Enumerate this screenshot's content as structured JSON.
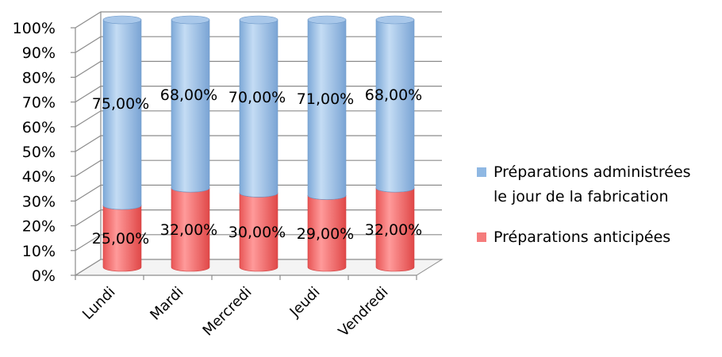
{
  "chart_data": {
    "type": "bar",
    "stacked": true,
    "percent_stacked": true,
    "three_d": true,
    "title": "",
    "xlabel": "",
    "ylabel": "",
    "categories": [
      "Lundi",
      "Mardi",
      "Mercredi",
      "Jeudi",
      "Vendredi"
    ],
    "series": [
      {
        "name": "Préparations anticipées",
        "color": "#f57c7c",
        "values": [
          25,
          32,
          30,
          29,
          32
        ],
        "labels": [
          "25,00%",
          "32,00%",
          "30,00%",
          "29,00%",
          "32,00%"
        ]
      },
      {
        "name": "Préparations administrées le jour de la fabrication",
        "legend_lines": [
          "Préparations administrées",
          "le jour de la fabrication"
        ],
        "color": "#8fb8e3",
        "values": [
          75,
          68,
          70,
          71,
          68
        ],
        "labels": [
          "75,00%",
          "68,00%",
          "70,00%",
          "71,00%",
          "68,00%"
        ]
      }
    ],
    "ylim": [
      0,
      100
    ],
    "yticks": [
      "0%",
      "10%",
      "20%",
      "30%",
      "40%",
      "50%",
      "60%",
      "70%",
      "80%",
      "90%",
      "100%"
    ],
    "grid": true,
    "legend_position": "right"
  }
}
